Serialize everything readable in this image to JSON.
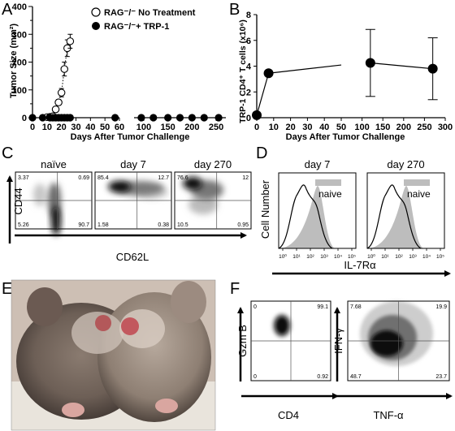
{
  "panel_letters": [
    "A",
    "B",
    "C",
    "D",
    "E",
    "F"
  ],
  "chart_data": [
    {
      "panel": "A",
      "type": "scatter",
      "xlabel": "Days After Tumor Challenge",
      "ylabel": "Tumor Size (mm²)",
      "xlim_segments": [
        [
          0,
          60
        ],
        [
          80,
          270
        ]
      ],
      "ylim": [
        0,
        400
      ],
      "xticks": [
        0,
        10,
        20,
        30,
        40,
        50,
        60,
        100,
        150,
        200,
        250
      ],
      "xtick_labels": [
        "0",
        "10",
        "20",
        "30",
        "40",
        "50",
        "60",
        "100",
        "150",
        "200",
        "250"
      ],
      "yticks": [
        0,
        50,
        100,
        150,
        200,
        250,
        300,
        350,
        400
      ],
      "yticks_labeled": [
        0,
        100,
        200,
        300,
        400
      ],
      "legend_position": "top-right",
      "series": [
        {
          "name": "RAG⁻/⁻ No Treatment",
          "marker": "open-circle",
          "line": "dotted",
          "x": [
            10,
            12,
            14,
            16,
            18,
            20,
            22,
            24,
            26
          ],
          "y": [
            2,
            3,
            5,
            30,
            55,
            90,
            175,
            250,
            275
          ],
          "err": [
            0,
            0,
            0,
            8,
            10,
            15,
            25,
            30,
            25
          ]
        },
        {
          "name": "RAG⁻/⁻+ TRP-1",
          "marker": "filled-circle",
          "line": "none",
          "x": [
            0,
            7,
            12,
            14,
            16,
            18,
            20,
            22,
            24,
            26,
            57,
            95,
            120,
            150,
            175,
            200,
            225,
            255
          ],
          "y": [
            0,
            0,
            0,
            0,
            0,
            0,
            0,
            0,
            0,
            0,
            0,
            0,
            0,
            0,
            0,
            0,
            0,
            0
          ]
        }
      ]
    },
    {
      "panel": "B",
      "type": "line",
      "xlabel": "Days After Tumor Challenge",
      "ylabel": "TRP-1 CD4⁺ T cells (x10⁶)",
      "xlim_segments": [
        [
          0,
          50
        ],
        [
          50,
          300
        ]
      ],
      "ylim": [
        0,
        8
      ],
      "xticks": [
        0,
        10,
        20,
        30,
        40,
        50,
        100,
        150,
        200,
        250,
        300
      ],
      "xtick_labels": [
        "0",
        "10",
        "20",
        "30",
        "40",
        "50",
        "100",
        "150",
        "200",
        "250",
        "300"
      ],
      "yticks": [
        0,
        2,
        4,
        6,
        8
      ],
      "series": [
        {
          "x": [
            0,
            7,
            120,
            270
          ],
          "y": [
            0.2,
            3.45,
            4.25,
            3.8
          ],
          "err": [
            0,
            0,
            2.6,
            2.4
          ]
        }
      ]
    },
    {
      "panel": "C",
      "type": "scatter",
      "subtype": "flow-cytometry-density",
      "xlabel": "CD62L",
      "ylabel": "CD44",
      "plots": [
        {
          "title": "naïve",
          "quadrants": {
            "ul": "3.37",
            "ur": "0.69",
            "ll": "5.26",
            "lr": "90.7"
          }
        },
        {
          "title": "day 7",
          "quadrants": {
            "ul": "85.4",
            "ur": "12.7",
            "ll": "1.58",
            "lr": "0.38"
          }
        },
        {
          "title": "day 270",
          "quadrants": {
            "ul": "76.6",
            "ur": "12",
            "ll": "10.5",
            "lr": "0.95"
          }
        }
      ]
    },
    {
      "panel": "D",
      "type": "area",
      "subtype": "histogram-overlay",
      "xlabel": "IL-7Rα",
      "ylabel": "Cell Number",
      "xtick_labels": [
        "10⁰",
        "10¹",
        "10²",
        "10³",
        "10⁴",
        "10⁵"
      ],
      "legend_position": "top-right",
      "plots": [
        {
          "title": "day 7",
          "legend": "naive"
        },
        {
          "title": "day 270",
          "legend": "naive"
        }
      ]
    },
    {
      "panel": "F",
      "type": "scatter",
      "subtype": "flow-cytometry-density",
      "plots": [
        {
          "xlabel": "CD4",
          "ylabel": "Gzm B",
          "quadrants": {
            "ul": "0",
            "ur": "99.1",
            "ll": "0",
            "lr": "0.92"
          }
        },
        {
          "xlabel": "TNF-α",
          "ylabel": "IFN-γ",
          "quadrants": {
            "ul": "7.68",
            "ur": "19.9",
            "ll": "48.7",
            "lr": "23.7"
          }
        }
      ]
    }
  ],
  "colors": {
    "ink": "#000000",
    "grid": "#555555",
    "naive_fill": "#bdbdbd",
    "density_mid": "#8a8a8a",
    "density_light": "#d6d6d6"
  }
}
